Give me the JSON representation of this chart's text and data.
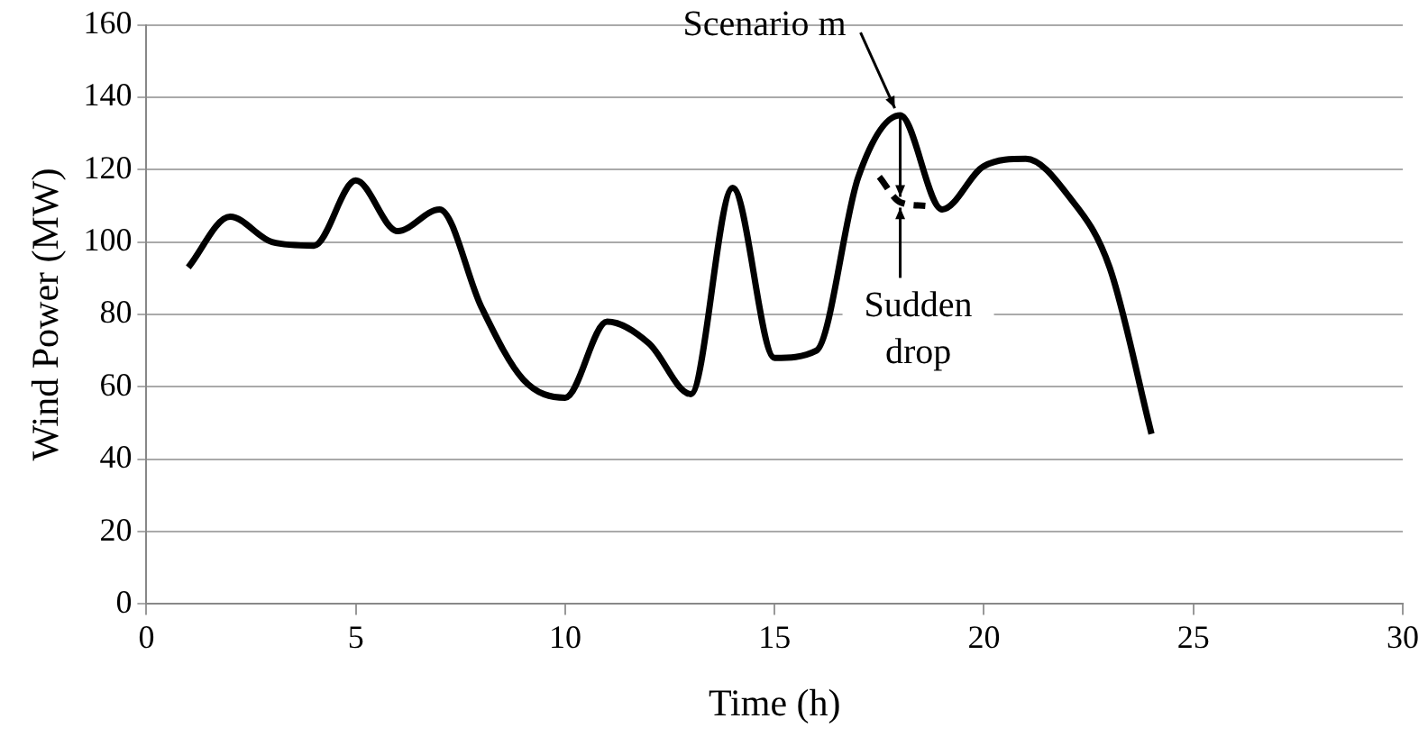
{
  "chart_data": {
    "type": "line",
    "xlabel": "Time (h)",
    "ylabel": "Wind Power (MW)",
    "series": [
      {
        "color": "#000000",
        "line_style": "solid",
        "x": [
          1,
          2,
          3,
          4,
          5,
          6,
          7,
          8,
          9,
          10,
          11,
          12,
          13,
          14,
          15,
          16,
          17,
          18,
          19,
          20,
          21,
          22,
          23,
          24
        ],
        "values": [
          93,
          107,
          100,
          99,
          117,
          103,
          109,
          82,
          62,
          57,
          78,
          72,
          58,
          115,
          68,
          70,
          118,
          135,
          109,
          121,
          123,
          113,
          93,
          47
        ]
      },
      {
        "color": "#000000",
        "line_style": "dashed",
        "x": [
          17.5,
          18,
          18.6
        ],
        "values": [
          118,
          111,
          110
        ]
      }
    ],
    "xlim": [
      0,
      30
    ],
    "xticks": [
      0,
      5,
      10,
      15,
      20,
      25,
      30
    ],
    "ylim": [
      0,
      160
    ],
    "yticks": [
      0,
      20,
      40,
      60,
      80,
      100,
      120,
      140,
      160
    ],
    "grid": "y",
    "legend": false,
    "marker": "none",
    "annotations": [
      {
        "text": "Scenario m",
        "x": 18,
        "y": 135
      },
      {
        "text": "Sudden drop",
        "x": 18,
        "y": 111
      }
    ]
  }
}
